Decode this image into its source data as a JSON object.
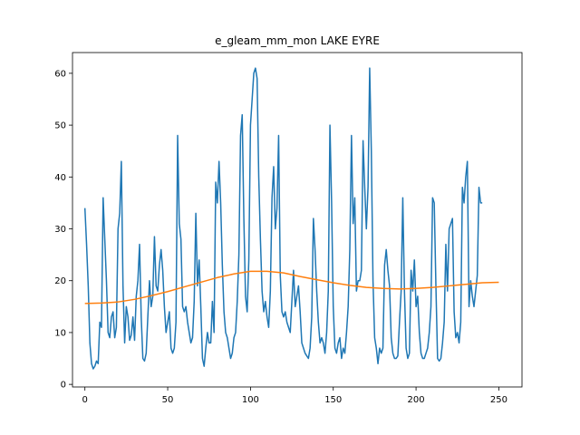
{
  "chart_data": {
    "type": "line",
    "title": "e_gleam_mm_mon LAKE EYRE",
    "xlabel": "",
    "ylabel": "",
    "xlim": [
      -7.5,
      264
    ],
    "ylim": [
      -0.5,
      64
    ],
    "x_ticks": [
      0,
      50,
      100,
      150,
      200,
      250
    ],
    "y_ticks": [
      0,
      10,
      20,
      30,
      40,
      50,
      60
    ],
    "grid": false,
    "legend": "none",
    "series": [
      {
        "color": "#1f77b4",
        "x_start": 0,
        "values": [
          34,
          27,
          19,
          8,
          4,
          3,
          3.5,
          4.5,
          4,
          12,
          11,
          36,
          28,
          20,
          10,
          9,
          13,
          14,
          9,
          11,
          30,
          33,
          43,
          19,
          8,
          15,
          13,
          8.5,
          9.5,
          13,
          8.5,
          17,
          20,
          27,
          13,
          5,
          4.5,
          6,
          13,
          20,
          15,
          17,
          28.5,
          19,
          18,
          23,
          26,
          22,
          15,
          10,
          12,
          14,
          7,
          6,
          7,
          12,
          48,
          31,
          28,
          15,
          14,
          15,
          12,
          10,
          8,
          9,
          16,
          33,
          19,
          24,
          15,
          5,
          3.5,
          7,
          10,
          8,
          8,
          16,
          10,
          39,
          35,
          43,
          35,
          23,
          14,
          10,
          9,
          7,
          5,
          6,
          9,
          10,
          16,
          25,
          48,
          52,
          32,
          17,
          14,
          24,
          50,
          55,
          60,
          61,
          59,
          40,
          28,
          18,
          14,
          16,
          13,
          11,
          18,
          36,
          42,
          30,
          34,
          48,
          21,
          14,
          13,
          14,
          12,
          11,
          10,
          16,
          22,
          15,
          17,
          19,
          14,
          8,
          7,
          6,
          5.5,
          5,
          7,
          13,
          32,
          26,
          18,
          12,
          8,
          9,
          8,
          6,
          10,
          18,
          50,
          35,
          15,
          7,
          6,
          8,
          9,
          5,
          7,
          6,
          10,
          15,
          26,
          48,
          31,
          36,
          18,
          20,
          20,
          22,
          47,
          38,
          30,
          38,
          61,
          45,
          20,
          9,
          7,
          4,
          7,
          6,
          7,
          23,
          26,
          22,
          19,
          9,
          6,
          5,
          5,
          5.5,
          12,
          18,
          36,
          18,
          7,
          5,
          6,
          22,
          18,
          24,
          15,
          17,
          10,
          6,
          5,
          5,
          6,
          7,
          10,
          15,
          36,
          35,
          19,
          5,
          4.5,
          5,
          8,
          12,
          27,
          18,
          30,
          31,
          32,
          14,
          9,
          10,
          8,
          12,
          38,
          35,
          40,
          43,
          15,
          20,
          17,
          15,
          18,
          21,
          38,
          35,
          35
        ]
      },
      {
        "color": "#ff7f0e",
        "x": [
          0,
          10,
          20,
          30,
          40,
          50,
          60,
          70,
          80,
          90,
          100,
          110,
          120,
          130,
          140,
          150,
          160,
          170,
          180,
          190,
          200,
          210,
          220,
          230,
          240,
          250
        ],
        "values": [
          15.6,
          15.7,
          15.9,
          16.4,
          17.1,
          17.9,
          18.8,
          19.7,
          20.6,
          21.3,
          21.8,
          21.8,
          21.5,
          20.8,
          20.2,
          19.6,
          19.1,
          18.7,
          18.5,
          18.4,
          18.5,
          18.7,
          19.0,
          19.3,
          19.6,
          19.7
        ]
      }
    ]
  }
}
